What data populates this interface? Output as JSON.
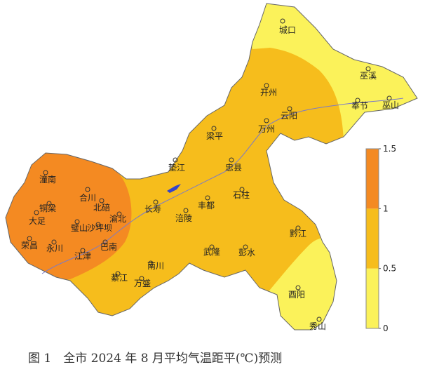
{
  "map": {
    "cities": [
      "城口",
      "巫溪",
      "开州",
      "奉节",
      "巫山",
      "云阳",
      "万州",
      "梁平",
      "垫江",
      "忠县",
      "石柱",
      "长寿",
      "丰都",
      "涪陵",
      "潼南",
      "合川",
      "铜梁",
      "北碚",
      "大足",
      "渝北",
      "璧山",
      "沙坪坝",
      "荣昌",
      "永川",
      "巴南",
      "江津",
      "黔江",
      "武隆",
      "彭水",
      "南川",
      "綦江",
      "万盛",
      "酉阳",
      "秀山"
    ],
    "legend": {
      "ticks": [
        0,
        0.5,
        1,
        1.5
      ],
      "colors": [
        "#fbf25a",
        "#f6bd1c",
        "#f48a22"
      ]
    },
    "caption": "图 1　全市 2024 年 8 月平均气温距平(℃)预测"
  }
}
